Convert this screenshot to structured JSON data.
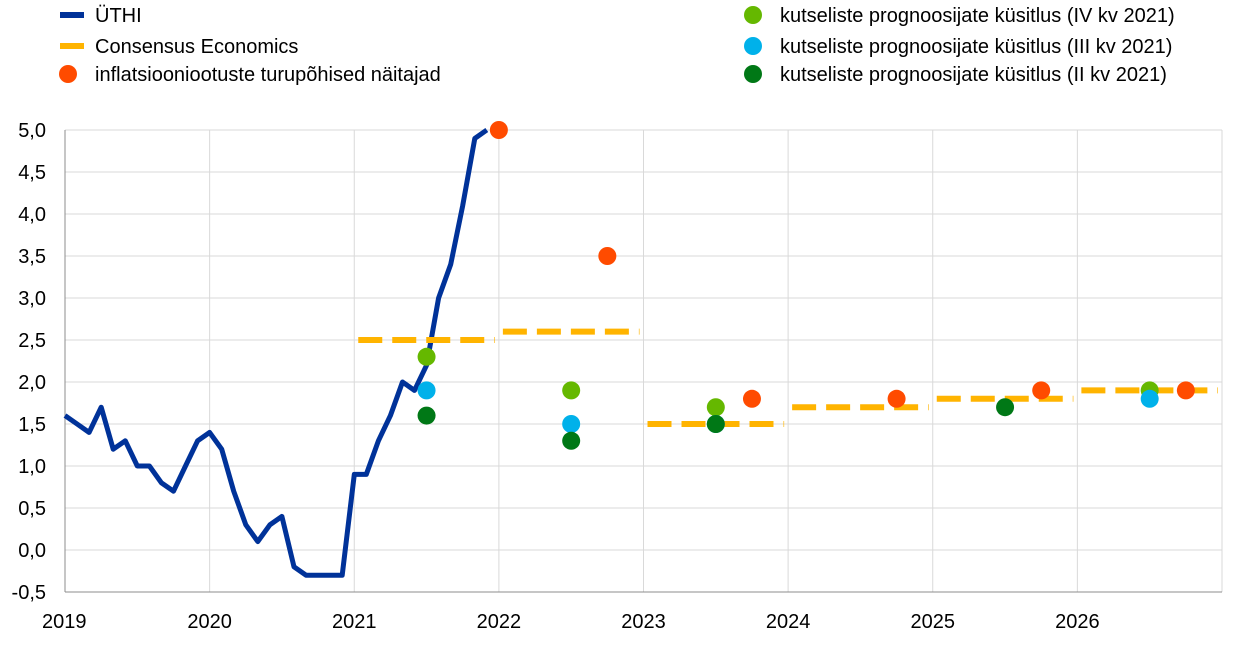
{
  "chart_data": {
    "type": "line",
    "xlim": [
      "2019-01",
      "2026-12"
    ],
    "ylim": [
      -0.5,
      5.0
    ],
    "y_ticks": [
      "5,0",
      "4,5",
      "4,0",
      "3,5",
      "3,0",
      "2,5",
      "2,0",
      "1,5",
      "1,0",
      "0,5",
      "0,0",
      "-0,5"
    ],
    "y_tick_values": [
      5.0,
      4.5,
      4.0,
      3.5,
      3.0,
      2.5,
      2.0,
      1.5,
      1.0,
      0.5,
      0.0,
      -0.5
    ],
    "x_ticks": [
      "2019",
      "2020",
      "2021",
      "2022",
      "2023",
      "2024",
      "2025",
      "2026"
    ],
    "grid": "both",
    "legend_position": "top",
    "legend": [
      {
        "label": "ÜTHI",
        "marker": "line",
        "color": "#003299"
      },
      {
        "label": "Consensus Economics",
        "marker": "dash",
        "color": "#FFB400"
      },
      {
        "label": "inflatsiooniootuste turupõhised näitajad",
        "marker": "dot",
        "color": "#FF4B00"
      },
      {
        "label": "kutseliste prognoosijate küsitlus (IV kv 2021)",
        "marker": "dot",
        "color": "#65B800"
      },
      {
        "label": "kutseliste prognoosijate küsitlus (III kv 2021)",
        "marker": "dot",
        "color": "#00B1EA"
      },
      {
        "label": "kutseliste prognoosijate küsitlus (II kv 2021)",
        "marker": "dot",
        "color": "#007816"
      }
    ],
    "series": [
      {
        "name": "ÜTHI",
        "kind": "line",
        "color": "#003299",
        "points": [
          [
            "2019-01",
            1.6
          ],
          [
            "2019-02",
            1.5
          ],
          [
            "2019-03",
            1.4
          ],
          [
            "2019-04",
            1.7
          ],
          [
            "2019-05",
            1.2
          ],
          [
            "2019-06",
            1.3
          ],
          [
            "2019-07",
            1.0
          ],
          [
            "2019-08",
            1.0
          ],
          [
            "2019-09",
            0.8
          ],
          [
            "2019-10",
            0.7
          ],
          [
            "2019-11",
            1.0
          ],
          [
            "2019-12",
            1.3
          ],
          [
            "2020-01",
            1.4
          ],
          [
            "2020-02",
            1.2
          ],
          [
            "2020-03",
            0.7
          ],
          [
            "2020-04",
            0.3
          ],
          [
            "2020-05",
            0.1
          ],
          [
            "2020-06",
            0.3
          ],
          [
            "2020-07",
            0.4
          ],
          [
            "2020-08",
            -0.2
          ],
          [
            "2020-09",
            -0.3
          ],
          [
            "2020-10",
            -0.3
          ],
          [
            "2020-11",
            -0.3
          ],
          [
            "2020-12",
            -0.3
          ],
          [
            "2021-01",
            0.9
          ],
          [
            "2021-02",
            0.9
          ],
          [
            "2021-03",
            1.3
          ],
          [
            "2021-04",
            1.6
          ],
          [
            "2021-05",
            2.0
          ],
          [
            "2021-06",
            1.9
          ],
          [
            "2021-07",
            2.2
          ],
          [
            "2021-08",
            3.0
          ],
          [
            "2021-09",
            3.4
          ],
          [
            "2021-10",
            4.1
          ],
          [
            "2021-11",
            4.9
          ],
          [
            "2021-12",
            5.0
          ]
        ]
      },
      {
        "name": "Consensus Economics",
        "kind": "dashed-steps",
        "color": "#FFB400",
        "segments": [
          {
            "x0": "2021-01",
            "x1": "2021-12",
            "y": 2.5
          },
          {
            "x0": "2022-01",
            "x1": "2022-12",
            "y": 2.6
          },
          {
            "x0": "2023-01",
            "x1": "2023-12",
            "y": 1.5
          },
          {
            "x0": "2024-01",
            "x1": "2024-12",
            "y": 1.7
          },
          {
            "x0": "2025-01",
            "x1": "2025-12",
            "y": 1.8
          },
          {
            "x0": "2026-01",
            "x1": "2026-12",
            "y": 1.9
          }
        ]
      },
      {
        "name": "inflatsiooniootuste turupõhised näitajad",
        "kind": "dots",
        "color": "#FF4B00",
        "points": [
          [
            "2022-01",
            5.0
          ],
          [
            "2022-10",
            3.5
          ],
          [
            "2023-10",
            1.8
          ],
          [
            "2024-10",
            1.8
          ],
          [
            "2025-10",
            1.9
          ],
          [
            "2026-10",
            1.9
          ]
        ]
      },
      {
        "name": "kutseliste prognoosijate küsitlus (IV kv 2021)",
        "kind": "dots",
        "color": "#65B800",
        "points": [
          [
            "2021-07",
            2.3
          ],
          [
            "2022-07",
            1.9
          ],
          [
            "2023-07",
            1.7
          ],
          [
            "2026-07",
            1.9
          ]
        ]
      },
      {
        "name": "kutseliste prognoosijate küsitlus (III kv 2021)",
        "kind": "dots",
        "color": "#00B1EA",
        "points": [
          [
            "2021-07",
            1.9
          ],
          [
            "2022-07",
            1.5
          ],
          [
            "2023-07",
            1.5
          ],
          [
            "2026-07",
            1.8
          ]
        ]
      },
      {
        "name": "kutseliste prognoosijate küsitlus (II kv 2021)",
        "kind": "dots",
        "color": "#007816",
        "points": [
          [
            "2021-07",
            1.6
          ],
          [
            "2022-07",
            1.3
          ],
          [
            "2023-07",
            1.5
          ],
          [
            "2025-07",
            1.7
          ]
        ]
      }
    ]
  }
}
